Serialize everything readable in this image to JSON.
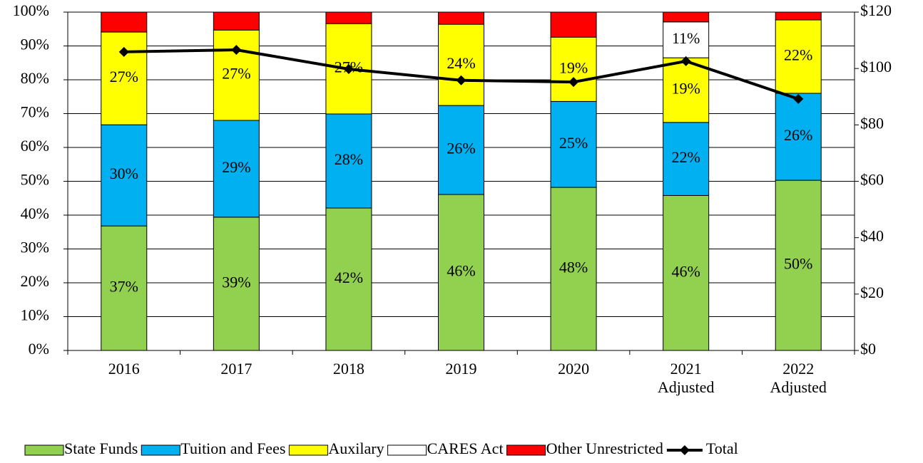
{
  "chart_data": {
    "type": "bar",
    "stacked": true,
    "categories": [
      "2016",
      "2017",
      "2018",
      "2019",
      "2020",
      "2021\nAdjusted",
      "2022\nAdjusted"
    ],
    "series": [
      {
        "name": "State Funds",
        "color": "#92d050",
        "values": [
          36.8,
          39.4,
          42.1,
          46.1,
          48.2,
          45.8,
          50.3
        ],
        "value_labels": [
          "37%",
          "39%",
          "42%",
          "46%",
          "48%",
          "46%",
          "50%"
        ]
      },
      {
        "name": "Tuition and Fees",
        "color": "#00b0f0",
        "values": [
          29.9,
          28.6,
          27.8,
          26.3,
          25.4,
          21.6,
          25.7
        ],
        "value_labels": [
          "30%",
          "29%",
          "28%",
          "26%",
          "25%",
          "22%",
          "26%"
        ]
      },
      {
        "name": "Auxilary",
        "color": "#ffff00",
        "values": [
          27.4,
          26.7,
          26.7,
          24.0,
          19.0,
          19.1,
          21.7
        ],
        "value_labels": [
          "27%",
          "27%",
          "27%",
          "24%",
          "19%",
          "19%",
          "22%"
        ]
      },
      {
        "name": "CARES Act",
        "color": "#ffffff",
        "values": [
          0,
          0,
          0,
          0,
          0,
          10.6,
          0
        ],
        "value_labels": [
          null,
          null,
          null,
          null,
          null,
          "11%",
          null
        ]
      },
      {
        "name": "Other Unrestricted",
        "color": "#ff0000",
        "values": [
          5.9,
          5.3,
          3.4,
          3.6,
          7.4,
          2.9,
          2.3
        ]
      },
      {
        "name": "Total",
        "type": "line",
        "axis": "y2",
        "color": "#000000",
        "values": [
          105.9,
          106.6,
          99.8,
          95.8,
          95.2,
          102.6,
          89.2
        ]
      }
    ],
    "ylim": [
      0,
      100
    ],
    "yticks": [
      {
        "value": 0,
        "label": "0%"
      },
      {
        "value": 10,
        "label": "10%"
      },
      {
        "value": 20,
        "label": "20%"
      },
      {
        "value": 30,
        "label": "30%"
      },
      {
        "value": 40,
        "label": "40%"
      },
      {
        "value": 50,
        "label": "50%"
      },
      {
        "value": 60,
        "label": "60%"
      },
      {
        "value": 70,
        "label": "70%"
      },
      {
        "value": 80,
        "label": "80%"
      },
      {
        "value": 90,
        "label": "90%"
      },
      {
        "value": 100,
        "label": "100%"
      }
    ],
    "y2lim": [
      0,
      120
    ],
    "y2ticks": [
      {
        "value": 0,
        "label": "$0"
      },
      {
        "value": 20,
        "label": "$20"
      },
      {
        "value": 40,
        "label": "$40"
      },
      {
        "value": 60,
        "label": "$60"
      },
      {
        "value": 80,
        "label": "$80"
      },
      {
        "value": 100,
        "label": "$100"
      },
      {
        "value": 120,
        "label": "$120"
      }
    ],
    "grid": true,
    "legend": "bottom"
  }
}
